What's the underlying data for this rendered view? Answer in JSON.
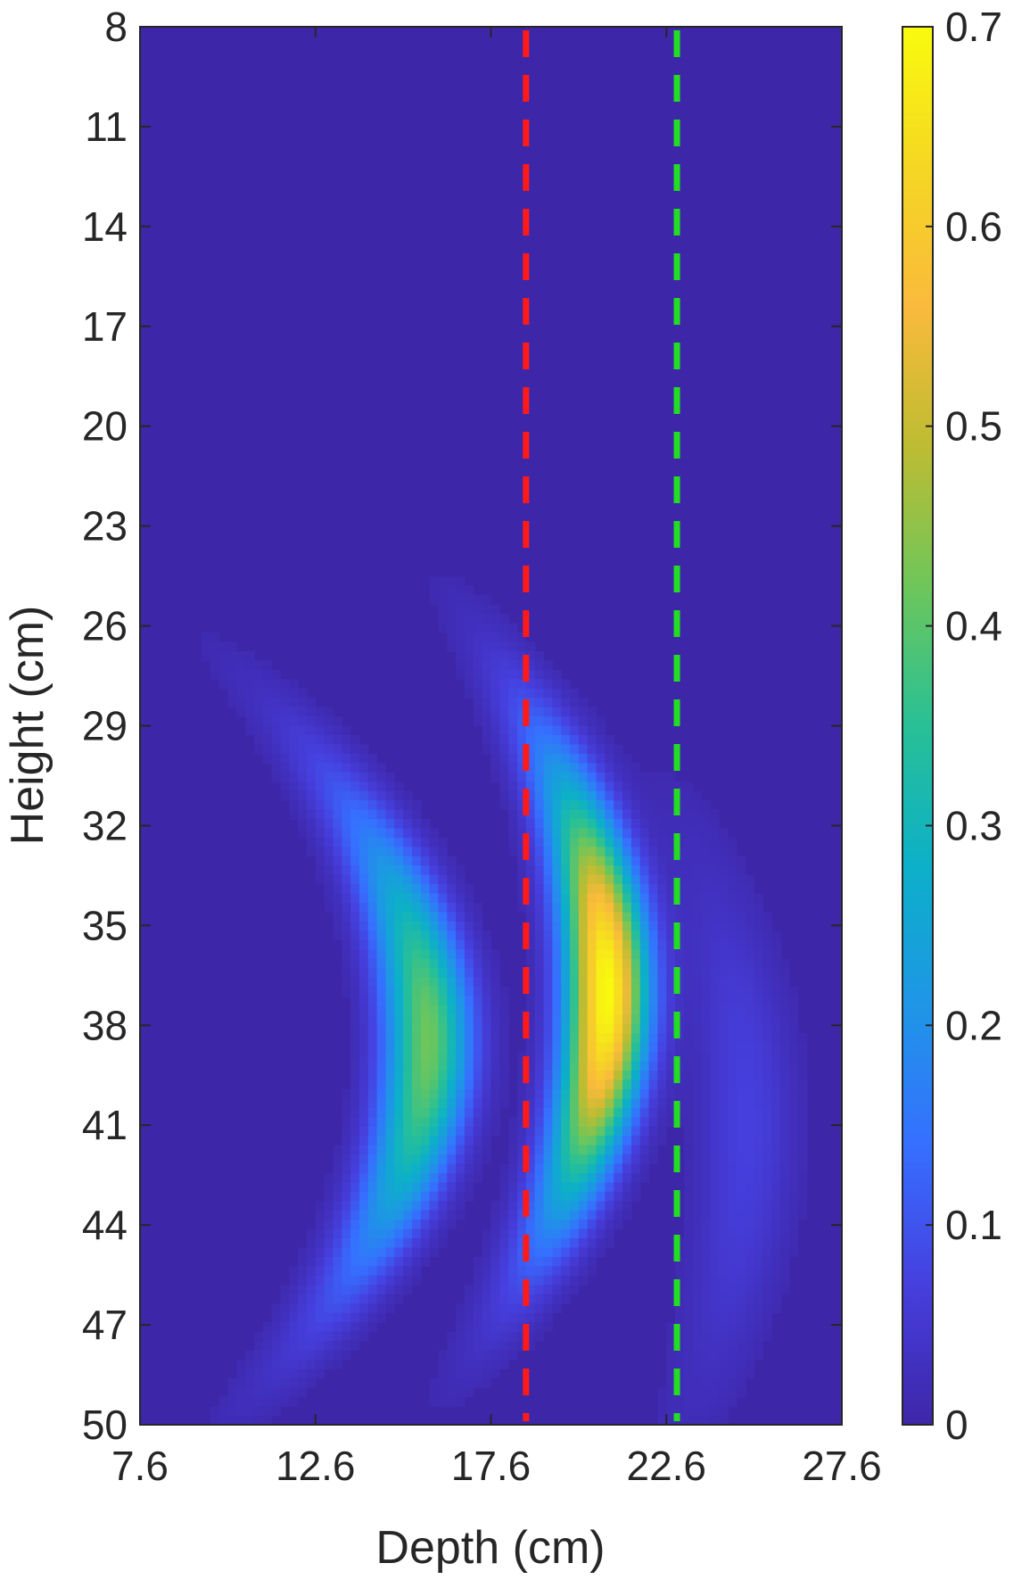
{
  "chart_data": {
    "type": "heatmap",
    "title": "",
    "xlabel": "Depth (cm)",
    "ylabel": "Height (cm)",
    "xlim": [
      7.6,
      27.6
    ],
    "ylim": [
      8,
      50
    ],
    "y_reversed": true,
    "x_ticks": [
      "7.6",
      "12.6",
      "17.6",
      "22.6",
      "27.6"
    ],
    "y_ticks": [
      "8",
      "11",
      "14",
      "17",
      "20",
      "23",
      "26",
      "29",
      "32",
      "35",
      "38",
      "41",
      "44",
      "47",
      "50"
    ],
    "colorbar": {
      "colormap": "parula",
      "range": [
        0,
        0.7
      ],
      "ticks": [
        "0",
        "0.1",
        "0.2",
        "0.3",
        "0.4",
        "0.5",
        "0.6",
        "0.7"
      ]
    },
    "reference_lines": [
      {
        "orientation": "vertical",
        "x": 18.6,
        "style": "dashed",
        "color": "#ff1a1a"
      },
      {
        "orientation": "vertical",
        "x": 22.9,
        "style": "dashed",
        "color": "#22dd22"
      }
    ],
    "features": [
      {
        "shape": "curved-band",
        "peak": 0.42,
        "x_range": [
          12.0,
          17.6
        ],
        "y_range": [
          29.5,
          46.0
        ],
        "peak_at": [
          15.7,
          39.5
        ]
      },
      {
        "shape": "curved-band",
        "peak": 0.7,
        "x_range": [
          16.5,
          22.0
        ],
        "y_range": [
          26.0,
          50.0
        ],
        "peak_at": [
          21.1,
          37.5
        ]
      },
      {
        "shape": "curved-band",
        "peak": 0.07,
        "x_range": [
          18.5,
          26.5
        ],
        "y_range": [
          30.5,
          50.0
        ],
        "peak_at": [
          24.8,
          42.0
        ]
      }
    ]
  }
}
